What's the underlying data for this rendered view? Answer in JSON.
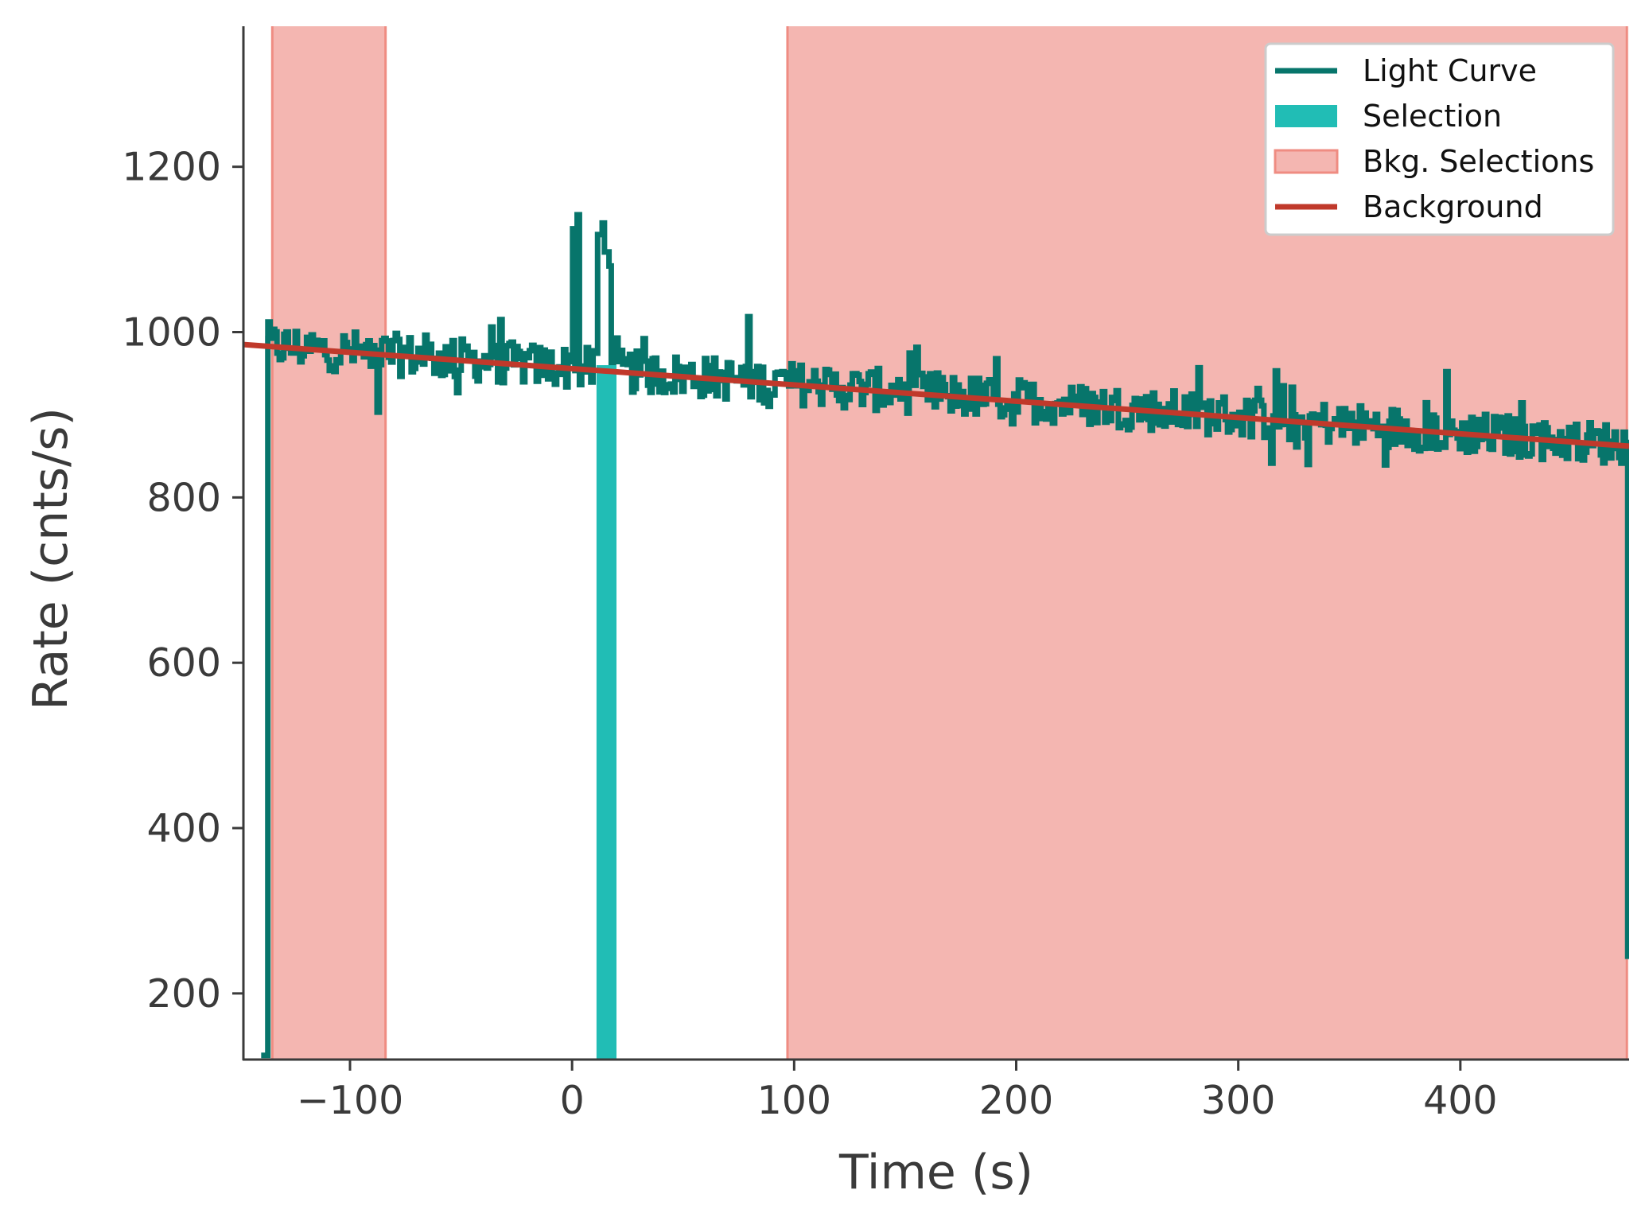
{
  "chart_data": {
    "type": "line",
    "title": "",
    "xlabel": "Time (s)",
    "ylabel": "Rate (cnts/s)",
    "xlim": [
      -148,
      476
    ],
    "ylim": [
      120,
      1370
    ],
    "xticks": [
      -100,
      0,
      100,
      200,
      300,
      400
    ],
    "xtick_labels": [
      "−100",
      "0",
      "100",
      "200",
      "300",
      "400"
    ],
    "yticks": [
      200,
      400,
      600,
      800,
      1000,
      1200
    ],
    "ytick_labels": [
      "200",
      "400",
      "600",
      "800",
      "1000",
      "1200"
    ],
    "grid": false,
    "legend_position": "top-right",
    "colors": {
      "light_curve": "#07756b",
      "selection": "#21bdb5",
      "bkg_fill": "#f4b6b1",
      "bkg_edge": "#ef8c82",
      "background": "#c0392b",
      "axis": "#3a3a3a"
    },
    "series": [
      {
        "name": "Light Curve",
        "kind": "step",
        "bin_width": 1.024,
        "t_start": -138,
        "t_end": 475,
        "baseline": {
          "slope": -0.196,
          "intercept": 957
        },
        "noise_amplitude": 26,
        "dropouts": [
          {
            "x": [
              -140,
              -137
            ],
            "y": 125
          },
          {
            "x": [
              474.5,
              476
            ],
            "y": 245
          }
        ],
        "peaks": [
          {
            "x": 0.5,
            "y": 1125
          },
          {
            "x": 2.0,
            "y": 1142
          },
          {
            "x": 12.0,
            "y": 1118
          },
          {
            "x": 13.5,
            "y": 1132
          },
          {
            "x": 15.0,
            "y": 1097
          },
          {
            "x": 17.0,
            "y": 1080
          }
        ],
        "sample_points": [
          {
            "x": -130,
            "y": 985
          },
          {
            "x": -100,
            "y": 1005
          },
          {
            "x": -57,
            "y": 1040
          },
          {
            "x": -50,
            "y": 890
          },
          {
            "x": 45,
            "y": 1035
          },
          {
            "x": 120,
            "y": 995
          },
          {
            "x": 185,
            "y": 1000
          },
          {
            "x": 280,
            "y": 822
          },
          {
            "x": 322,
            "y": 805
          },
          {
            "x": 395,
            "y": 945
          },
          {
            "x": 470,
            "y": 910
          }
        ]
      },
      {
        "name": "Selection",
        "kind": "span",
        "x": [
          11,
          20
        ]
      },
      {
        "name": "Bkg. Selections",
        "kind": "fill",
        "ranges": [
          [
            -135,
            -84
          ],
          [
            97,
            475
          ]
        ]
      },
      {
        "name": "Background",
        "kind": "line",
        "model": "linear",
        "points": [
          {
            "x": -148,
            "y": 985
          },
          {
            "x": 476,
            "y": 862
          }
        ]
      }
    ]
  }
}
